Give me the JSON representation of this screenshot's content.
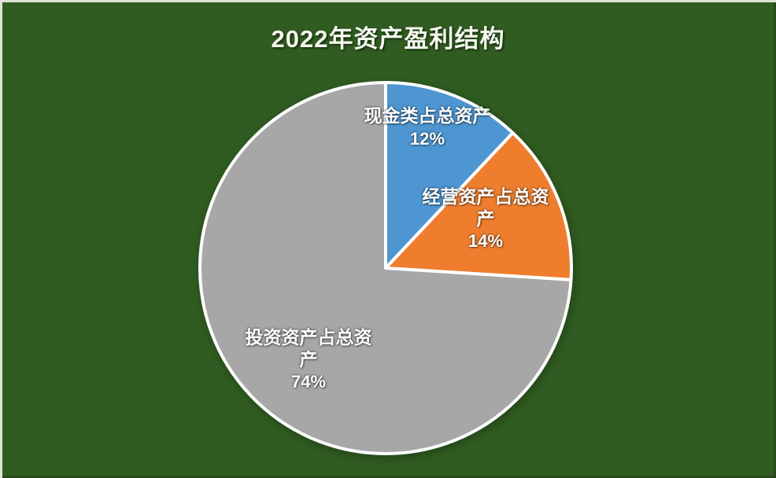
{
  "title": {
    "text": "2022年资产盈利结构"
  },
  "colors": {
    "background": "#305c21",
    "border_light": "#dee4d4",
    "border_dark": "#27481a",
    "title_text": "#f6f7ef",
    "label_text": "#ffffff",
    "slice_border": "#ffffff"
  },
  "chart_data": {
    "type": "pie",
    "title": "2022年资产盈利结构",
    "direction": "clockwise",
    "start_angle_deg": 0,
    "legend_position": "none",
    "labels_on_slices": true,
    "slices": [
      {
        "label": "现金类占总资产",
        "value_pct": 12,
        "pct_text": "12%",
        "color": "#4e96d2"
      },
      {
        "label": "经营资产占总资产",
        "value_pct": 14,
        "pct_text": "14%",
        "color": "#ee7e2e"
      },
      {
        "label": "投资资产占总资产",
        "value_pct": 74,
        "pct_text": "74%",
        "color": "#a7a7a7"
      }
    ]
  }
}
